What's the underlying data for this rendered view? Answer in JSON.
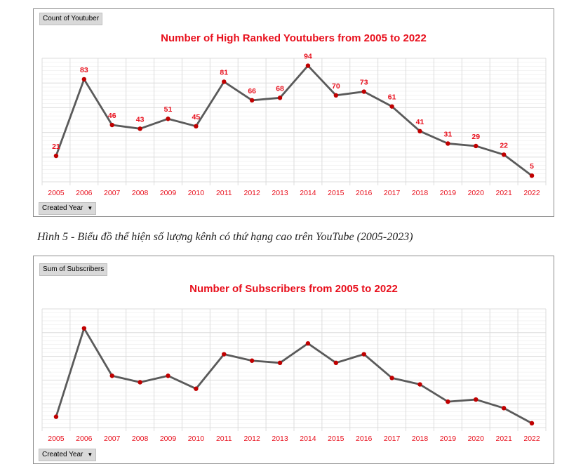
{
  "chart_data": [
    {
      "type": "line",
      "title": "Number of High Ranked Youtubers from 2005 to 2022",
      "field_button": "Count of Youtuber",
      "filter_button": "Created Year",
      "categories": [
        "2005",
        "2006",
        "2007",
        "2008",
        "2009",
        "2010",
        "2011",
        "2012",
        "2013",
        "2014",
        "2015",
        "2016",
        "2017",
        "2018",
        "2019",
        "2020",
        "2021",
        "2022"
      ],
      "values": [
        21,
        83,
        46,
        43,
        51,
        45,
        81,
        66,
        68,
        94,
        70,
        73,
        61,
        41,
        31,
        29,
        22,
        5
      ],
      "data_labels": true,
      "ylim": [
        0,
        100
      ],
      "grid": true,
      "colors": {
        "line": "#5a5a5a",
        "marker": "#c00000",
        "label": "#e8101d",
        "tick": "#e8101d",
        "grid": "#dcdcdc"
      }
    },
    {
      "type": "line",
      "title": "Number of Subscribers from 2005 to 2022",
      "field_button": "Sum of Subscribers",
      "filter_button": "Created Year",
      "categories": [
        "2005",
        "2006",
        "2007",
        "2008",
        "2009",
        "2010",
        "2011",
        "2012",
        "2013",
        "2014",
        "2015",
        "2016",
        "2017",
        "2018",
        "2019",
        "2020",
        "2021",
        "2022"
      ],
      "values": [
        5,
        46,
        24,
        21,
        24,
        18,
        34,
        31,
        30,
        39,
        30,
        34,
        23,
        20,
        12,
        13,
        9,
        2
      ],
      "data_labels": false,
      "ylim": [
        0,
        55
      ],
      "grid": true,
      "colors": {
        "line": "#5a5a5a",
        "marker": "#c00000",
        "label": "#e8101d",
        "tick": "#e8101d",
        "grid": "#dcdcdc"
      }
    }
  ],
  "caption": "Hình 5 - Biểu đồ thể hiện số lượng kênh có thứ hạng cao trên YouTube (2005-2023)"
}
